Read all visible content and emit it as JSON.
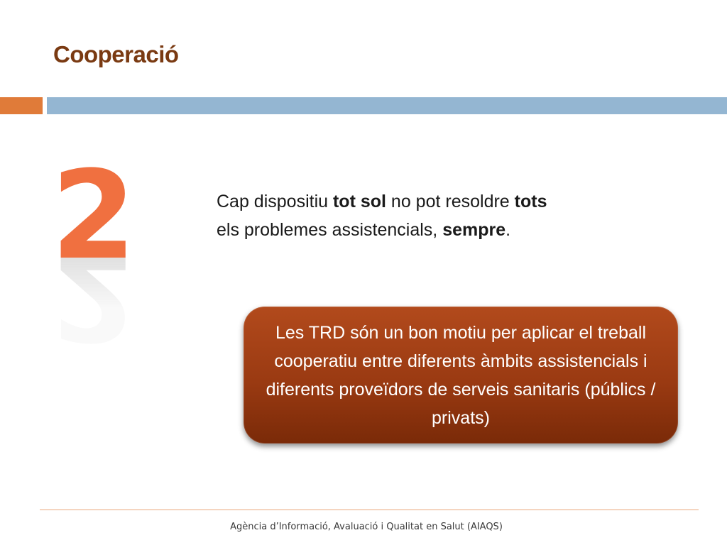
{
  "slide": {
    "title": "Cooperació",
    "number": "2",
    "statement": {
      "p1": "Cap dispositiu ",
      "b1": "tot sol",
      "p2": " no pot resoldre ",
      "b2": "tots",
      "p3": "els problemes assistencials, ",
      "b3": "sempre",
      "p4": "."
    },
    "callout": {
      "text": "Les TRD són un bon motiu per aplicar el treball cooperatiu entre diferents àmbits assistencials i diferents proveïdors de serveis sanitaris (públics / privats)"
    },
    "footer": "Agència d’Informació, Avaluació i Qualitat en Salut (AIAQS)"
  },
  "colors": {
    "title": "#7a3a12",
    "accent_bar": "#e07b39",
    "main_bar": "#94b6d2",
    "digit": "#f07040",
    "callout_fill": "#9a3a12",
    "footer_rule": "#e9a77b"
  }
}
